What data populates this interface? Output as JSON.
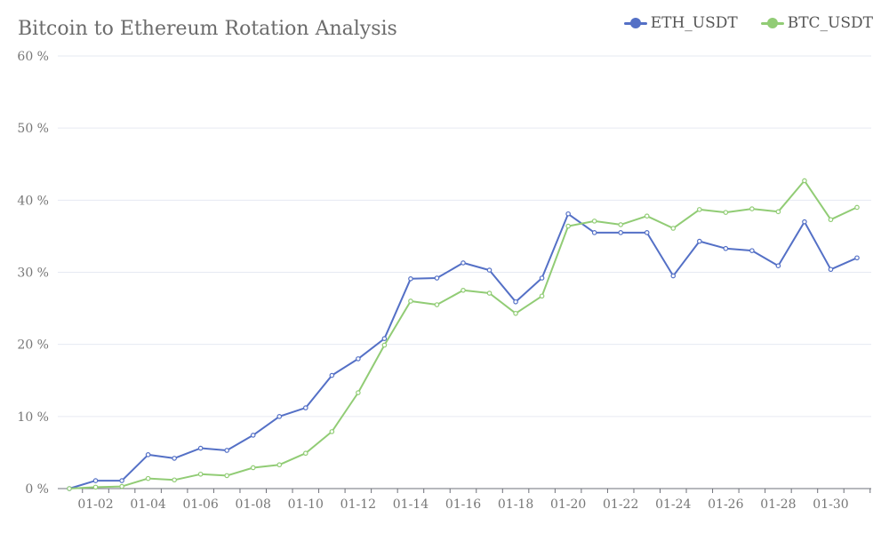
{
  "chart_data": {
    "type": "line",
    "title": "Bitcoin to Ethereum Rotation Analysis",
    "xlabel": "",
    "ylabel": "",
    "ylim": [
      0,
      60
    ],
    "y_ticks": [
      "0 %",
      "10 %",
      "20 %",
      "30 %",
      "40 %",
      "50 %",
      "60 %"
    ],
    "x_ticks": [
      "01-02",
      "01-04",
      "01-06",
      "01-08",
      "01-10",
      "01-12",
      "01-14",
      "01-16",
      "01-18",
      "01-20",
      "01-22",
      "01-24",
      "01-26",
      "01-28",
      "01-30"
    ],
    "x": [
      "01-01",
      "01-02",
      "01-03",
      "01-04",
      "01-05",
      "01-06",
      "01-07",
      "01-08",
      "01-09",
      "01-10",
      "01-11",
      "01-12",
      "01-13",
      "01-14",
      "01-15",
      "01-16",
      "01-17",
      "01-18",
      "01-19",
      "01-20",
      "01-21",
      "01-22",
      "01-23",
      "01-24",
      "01-25",
      "01-26",
      "01-27",
      "01-28",
      "01-29",
      "01-30",
      "01-31"
    ],
    "grid": true,
    "legend_position": "top-right",
    "series": [
      {
        "name": "ETH_USDT",
        "color": "#5470c6",
        "values": [
          0,
          1.1,
          1.1,
          4.7,
          4.2,
          5.6,
          5.3,
          7.4,
          10.0,
          11.2,
          15.7,
          18.0,
          20.8,
          29.1,
          29.2,
          31.3,
          30.3,
          25.9,
          29.2,
          38.1,
          35.5,
          35.5,
          35.5,
          29.5,
          34.3,
          33.3,
          33.0,
          30.9,
          37.0,
          30.4,
          32.0
        ]
      },
      {
        "name": "BTC_USDT",
        "color": "#91cc75",
        "values": [
          0,
          0.2,
          0.3,
          1.4,
          1.2,
          2.0,
          1.8,
          2.9,
          3.3,
          4.9,
          7.9,
          13.3,
          19.9,
          26.0,
          25.5,
          27.5,
          27.1,
          24.3,
          26.7,
          36.4,
          37.1,
          36.6,
          37.8,
          36.1,
          38.7,
          38.3,
          38.8,
          38.4,
          42.7,
          37.3,
          39.0
        ]
      }
    ]
  }
}
